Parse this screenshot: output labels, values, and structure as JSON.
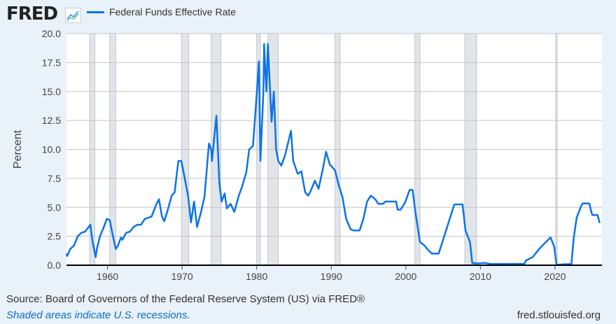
{
  "header": {
    "logo": "FRED",
    "logo_icon": "line-chart-icon"
  },
  "footer": {
    "source": "Source: Board of Governors of the Federal Reserve System (US) via FRED®",
    "note": "Shaded areas indicate U.S. recessions.",
    "url": "fred.stlouisfed.org"
  },
  "colors": {
    "series": "#0b73e6",
    "recession": "#e1e5ea",
    "background": "#e9f1f9"
  },
  "chart_data": {
    "type": "line",
    "title": "",
    "xlabel": "",
    "ylabel": "Percent",
    "xlim": [
      1954.5,
      2026.3
    ],
    "ylim": [
      0,
      20
    ],
    "grid": true,
    "legend_position": "top-left",
    "x_ticks": [
      "1960",
      "1970",
      "1980",
      "1990",
      "2000",
      "2010",
      "2020"
    ],
    "y_ticks": [
      "0.0",
      "2.5",
      "5.0",
      "7.5",
      "10.0",
      "12.5",
      "15.0",
      "17.5",
      "20.0"
    ],
    "recessions": [
      [
        1957.6,
        1958.3
      ],
      [
        1960.3,
        1961.1
      ],
      [
        1969.9,
        1970.9
      ],
      [
        1973.9,
        1975.2
      ],
      [
        1980.0,
        1980.5
      ],
      [
        1981.5,
        1982.9
      ],
      [
        1990.5,
        1991.2
      ],
      [
        2001.2,
        2001.9
      ],
      [
        2007.9,
        2009.5
      ],
      [
        2020.1,
        2020.3
      ]
    ],
    "series": [
      {
        "name": "Federal Funds Effective Rate",
        "points": [
          [
            1954.5,
            1.0
          ],
          [
            1954.6,
            0.8
          ],
          [
            1955,
            1.4
          ],
          [
            1955.5,
            1.7
          ],
          [
            1956,
            2.5
          ],
          [
            1956.5,
            2.8
          ],
          [
            1957,
            2.9
          ],
          [
            1957.7,
            3.5
          ],
          [
            1958.0,
            2.0
          ],
          [
            1958.4,
            0.7
          ],
          [
            1958.6,
            1.5
          ],
          [
            1959,
            2.5
          ],
          [
            1959.5,
            3.3
          ],
          [
            1959.9,
            4.0
          ],
          [
            1960.3,
            3.9
          ],
          [
            1960.6,
            2.9
          ],
          [
            1960.9,
            2.0
          ],
          [
            1961.1,
            1.4
          ],
          [
            1961.4,
            1.7
          ],
          [
            1961.8,
            2.4
          ],
          [
            1962,
            2.2
          ],
          [
            1962.5,
            2.8
          ],
          [
            1963,
            2.9
          ],
          [
            1963.5,
            3.3
          ],
          [
            1964,
            3.5
          ],
          [
            1964.5,
            3.5
          ],
          [
            1965,
            4.0
          ],
          [
            1965.9,
            4.2
          ],
          [
            1966.5,
            5.2
          ],
          [
            1966.9,
            5.7
          ],
          [
            1967.3,
            4.2
          ],
          [
            1967.6,
            3.8
          ],
          [
            1968,
            4.6
          ],
          [
            1968.6,
            6.0
          ],
          [
            1969,
            6.3
          ],
          [
            1969.5,
            9.0
          ],
          [
            1969.9,
            9.0
          ],
          [
            1970.2,
            8.0
          ],
          [
            1970.8,
            6.0
          ],
          [
            1971.2,
            3.7
          ],
          [
            1971.6,
            5.5
          ],
          [
            1972.0,
            3.3
          ],
          [
            1972.5,
            4.5
          ],
          [
            1973,
            5.9
          ],
          [
            1973.6,
            10.5
          ],
          [
            1973.9,
            10.0
          ],
          [
            1974.0,
            9.0
          ],
          [
            1974.6,
            12.9
          ],
          [
            1975.0,
            7.1
          ],
          [
            1975.3,
            5.5
          ],
          [
            1975.7,
            6.2
          ],
          [
            1976.0,
            4.9
          ],
          [
            1976.5,
            5.3
          ],
          [
            1977.0,
            4.6
          ],
          [
            1977.6,
            6.0
          ],
          [
            1978,
            6.7
          ],
          [
            1978.6,
            8.0
          ],
          [
            1979,
            10.0
          ],
          [
            1979.5,
            10.3
          ],
          [
            1979.9,
            13.8
          ],
          [
            1980.3,
            17.6
          ],
          [
            1980.5,
            9.0
          ],
          [
            1980.9,
            15.0
          ],
          [
            1981.0,
            19.1
          ],
          [
            1981.3,
            15.0
          ],
          [
            1981.5,
            19.1
          ],
          [
            1981.8,
            15.0
          ],
          [
            1982.0,
            12.4
          ],
          [
            1982.3,
            15.0
          ],
          [
            1982.6,
            10.0
          ],
          [
            1982.9,
            9.0
          ],
          [
            1983.3,
            8.6
          ],
          [
            1983.8,
            9.5
          ],
          [
            1984.6,
            11.6
          ],
          [
            1984.9,
            9.0
          ],
          [
            1985.5,
            7.9
          ],
          [
            1986.0,
            8.1
          ],
          [
            1986.5,
            6.3
          ],
          [
            1986.9,
            6.0
          ],
          [
            1987.3,
            6.5
          ],
          [
            1987.8,
            7.3
          ],
          [
            1988.3,
            6.6
          ],
          [
            1988.9,
            8.4
          ],
          [
            1989.3,
            9.8
          ],
          [
            1989.8,
            8.7
          ],
          [
            1990.5,
            8.2
          ],
          [
            1991.0,
            6.9
          ],
          [
            1991.5,
            5.9
          ],
          [
            1992.0,
            4.0
          ],
          [
            1992.6,
            3.1
          ],
          [
            1993,
            3.0
          ],
          [
            1993.8,
            3.0
          ],
          [
            1994.3,
            4.0
          ],
          [
            1994.8,
            5.5
          ],
          [
            1995.3,
            6.0
          ],
          [
            1995.9,
            5.7
          ],
          [
            1996.3,
            5.3
          ],
          [
            1996.9,
            5.3
          ],
          [
            1997.3,
            5.5
          ],
          [
            1998.7,
            5.5
          ],
          [
            1998.9,
            4.8
          ],
          [
            1999.3,
            4.8
          ],
          [
            1999.9,
            5.4
          ],
          [
            2000.5,
            6.5
          ],
          [
            2000.9,
            6.5
          ],
          [
            2001.3,
            4.5
          ],
          [
            2001.9,
            2.0
          ],
          [
            2002.5,
            1.7
          ],
          [
            2003.0,
            1.3
          ],
          [
            2003.5,
            1.0
          ],
          [
            2004.4,
            1.0
          ],
          [
            2006.5,
            5.25
          ],
          [
            2007.6,
            5.25
          ],
          [
            2008.0,
            3.0
          ],
          [
            2008.6,
            2.0
          ],
          [
            2008.9,
            0.2
          ],
          [
            2009.5,
            0.15
          ],
          [
            2010.5,
            0.2
          ],
          [
            2011.5,
            0.1
          ],
          [
            2013,
            0.1
          ],
          [
            2015.9,
            0.12
          ],
          [
            2016.1,
            0.4
          ],
          [
            2017,
            0.7
          ],
          [
            2018,
            1.5
          ],
          [
            2019.4,
            2.4
          ],
          [
            2019.9,
            1.6
          ],
          [
            2020.2,
            0.05
          ],
          [
            2022.2,
            0.1
          ],
          [
            2022.5,
            2.3
          ],
          [
            2022.9,
            4.1
          ],
          [
            2023.5,
            5.1
          ],
          [
            2023.7,
            5.33
          ],
          [
            2024.6,
            5.33
          ],
          [
            2024.8,
            4.8
          ],
          [
            2025.0,
            4.33
          ],
          [
            2025.7,
            4.33
          ],
          [
            2026.0,
            3.64
          ]
        ]
      }
    ]
  }
}
